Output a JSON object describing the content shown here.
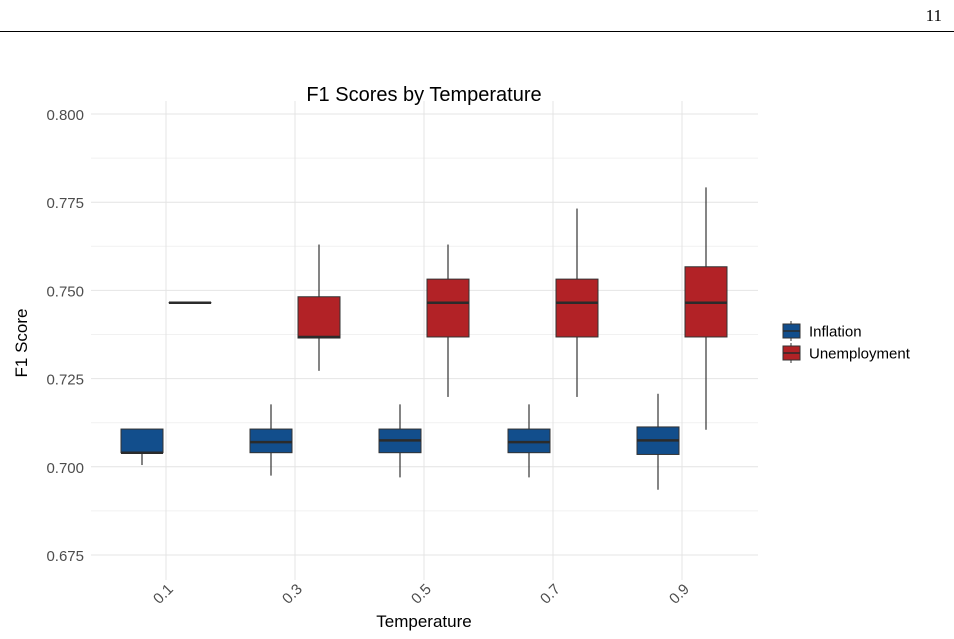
{
  "page": {
    "number": "11"
  },
  "chart_data": {
    "type": "box",
    "title": "F1 Scores by Temperature",
    "xlabel": "Temperature",
    "ylabel": "F1 Score",
    "categories": [
      "0.1",
      "0.3",
      "0.5",
      "0.7",
      "0.9"
    ],
    "ylim": [
      0.67,
      0.8
    ],
    "y_ticks": [
      "0.675",
      "0.700",
      "0.725",
      "0.750",
      "0.775",
      "0.800"
    ],
    "grid": true,
    "legend_position": "right",
    "series": [
      {
        "name": "Inflation",
        "color": "#124e8c",
        "boxes": [
          {
            "min": 0.7005,
            "q1": 0.704,
            "median": 0.704,
            "q3": 0.7107,
            "max": 0.7107
          },
          {
            "min": 0.6975,
            "q1": 0.704,
            "median": 0.707,
            "q3": 0.7107,
            "max": 0.7177
          },
          {
            "min": 0.697,
            "q1": 0.704,
            "median": 0.7075,
            "q3": 0.7107,
            "max": 0.7177
          },
          {
            "min": 0.697,
            "q1": 0.704,
            "median": 0.707,
            "q3": 0.7107,
            "max": 0.7177
          },
          {
            "min": 0.6935,
            "q1": 0.7035,
            "median": 0.7075,
            "q3": 0.7113,
            "max": 0.7207
          }
        ]
      },
      {
        "name": "Unemployment",
        "color": "#b22226",
        "boxes": [
          {
            "min": 0.7465,
            "q1": 0.7465,
            "median": 0.7465,
            "q3": 0.7465,
            "max": 0.7465
          },
          {
            "min": 0.7272,
            "q1": 0.7365,
            "median": 0.7368,
            "q3": 0.7482,
            "max": 0.763
          },
          {
            "min": 0.7198,
            "q1": 0.7368,
            "median": 0.7465,
            "q3": 0.7532,
            "max": 0.763
          },
          {
            "min": 0.7198,
            "q1": 0.7368,
            "median": 0.7465,
            "q3": 0.7532,
            "max": 0.7732
          },
          {
            "min": 0.7105,
            "q1": 0.7368,
            "median": 0.7465,
            "q3": 0.7567,
            "max": 0.7792
          }
        ]
      }
    ]
  }
}
